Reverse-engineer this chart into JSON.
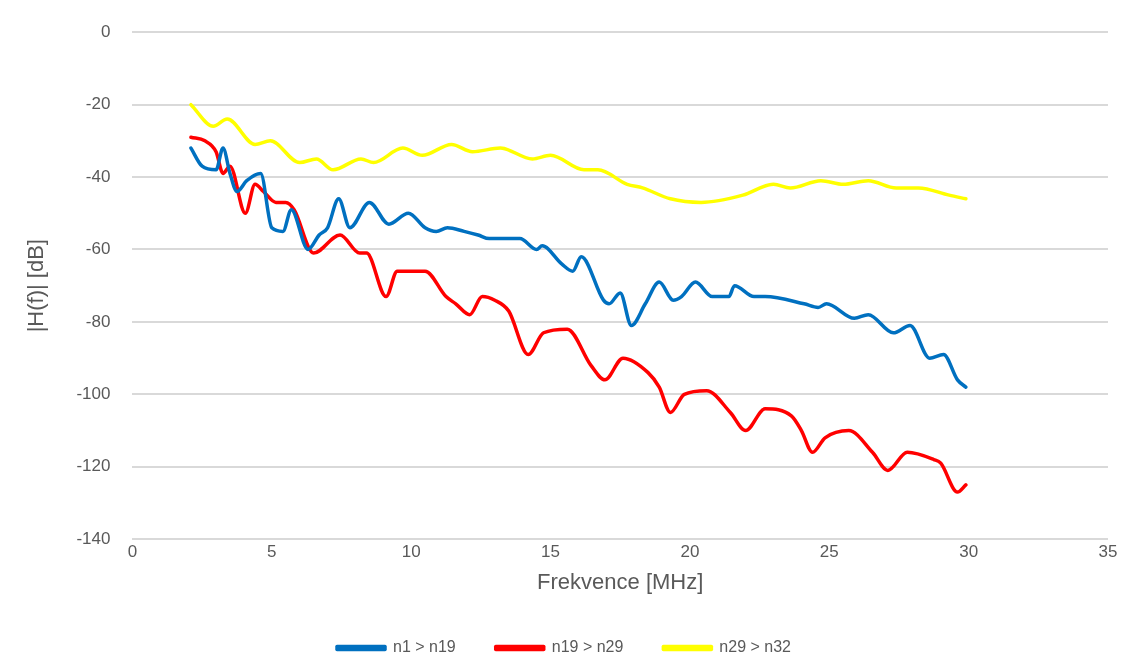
{
  "chart_data": {
    "type": "line",
    "xlabel": "Frekvence [MHz]",
    "ylabel": "|H(f)| [dB]",
    "xlim": [
      0,
      35
    ],
    "xticks": [
      0,
      5,
      10,
      15,
      20,
      25,
      30,
      35
    ],
    "ylim": [
      -140,
      0
    ],
    "yticks": [
      -140,
      -120,
      -100,
      -80,
      -60,
      -40,
      -20,
      0
    ],
    "grid": "y",
    "legend": "bottom",
    "marker": "none",
    "line_style": "solid",
    "series": [
      {
        "name": "n1 > n19",
        "color": "#0070c0",
        "x": [
          2.1,
          2.5,
          3.0,
          3.25,
          3.5,
          3.75,
          4.1,
          4.6,
          5.0,
          5.4,
          5.7,
          6.3,
          6.7,
          7.0,
          7.4,
          7.8,
          8.5,
          9.2,
          9.9,
          10.5,
          10.9,
          11.3,
          11.9,
          12.4,
          12.8,
          13.2,
          13.9,
          14.5,
          14.7,
          15.4,
          15.8,
          16.1,
          16.9,
          17.1,
          17.5,
          17.9,
          18.4,
          18.9,
          19.4,
          19.7,
          20.2,
          20.8,
          21.4,
          21.6,
          22.3,
          22.7,
          24.1,
          24.6,
          24.9,
          25.9,
          26.4,
          27.3,
          27.9,
          28.6,
          29.1,
          29.6,
          29.9
        ],
        "values": [
          -32,
          -37,
          -38,
          -32,
          -39,
          -44,
          -41,
          -39,
          -54,
          -55,
          -49,
          -60,
          -56,
          -54,
          -46,
          -54,
          -47,
          -53,
          -50,
          -54,
          -55,
          -54,
          -55,
          -56,
          -57,
          -57,
          -57,
          -60,
          -59,
          -64,
          -66,
          -62,
          -74,
          -75,
          -72,
          -81,
          -75,
          -69,
          -74,
          -73,
          -69,
          -73,
          -73,
          -70,
          -73,
          -73,
          -75,
          -76,
          -75,
          -79,
          -78,
          -83,
          -81,
          -90,
          -89,
          -96,
          -98
        ]
      },
      {
        "name": "n19 > n29",
        "color": "#ff0000",
        "x": [
          2.1,
          2.6,
          3.0,
          3.25,
          3.5,
          4.05,
          4.4,
          4.7,
          5.15,
          5.5,
          5.8,
          6.5,
          7.45,
          8.15,
          8.4,
          9.1,
          9.5,
          10.5,
          11.25,
          11.6,
          12.1,
          12.55,
          13.0,
          13.5,
          14.2,
          14.75,
          15.6,
          16.45,
          16.95,
          17.6,
          18.5,
          18.9,
          19.3,
          19.8,
          20.6,
          21.45,
          22.0,
          22.7,
          23.65,
          24.0,
          24.4,
          24.85,
          25.7,
          26.55,
          27.1,
          27.8,
          28.75,
          29.0,
          29.6,
          29.9
        ],
        "values": [
          -29,
          -30,
          -33,
          -39,
          -37,
          -50,
          -42,
          -44,
          -47,
          -47,
          -49,
          -61,
          -56,
          -61,
          -61,
          -73,
          -66,
          -66,
          -73,
          -75,
          -78,
          -73,
          -74,
          -77,
          -89,
          -83,
          -82,
          -92,
          -96,
          -90,
          -94,
          -98,
          -105,
          -100,
          -99,
          -105,
          -110,
          -104,
          -106,
          -110,
          -116,
          -112,
          -110,
          -116,
          -121,
          -116,
          -118,
          -119,
          -127,
          -125
        ]
      },
      {
        "name": "n29 > n32",
        "color": "#ffff00",
        "x": [
          2.1,
          2.9,
          3.4,
          4.4,
          4.95,
          6.0,
          6.6,
          7.2,
          8.2,
          8.65,
          9.7,
          10.4,
          11.45,
          12.2,
          13.2,
          14.35,
          15.0,
          16.2,
          16.7,
          17.75,
          18.3,
          19.3,
          20.4,
          21.9,
          23.0,
          23.6,
          24.7,
          25.5,
          26.4,
          27.4,
          28.2,
          29.3,
          29.9
        ],
        "values": [
          -20,
          -26,
          -24,
          -31,
          -30,
          -36,
          -35,
          -38,
          -35,
          -36,
          -32,
          -34,
          -31,
          -33,
          -32,
          -35,
          -34,
          -38,
          -38,
          -42,
          -43,
          -46,
          -47,
          -45,
          -42,
          -43,
          -41,
          -42,
          -41,
          -43,
          -43,
          -45,
          -46
        ]
      }
    ]
  }
}
